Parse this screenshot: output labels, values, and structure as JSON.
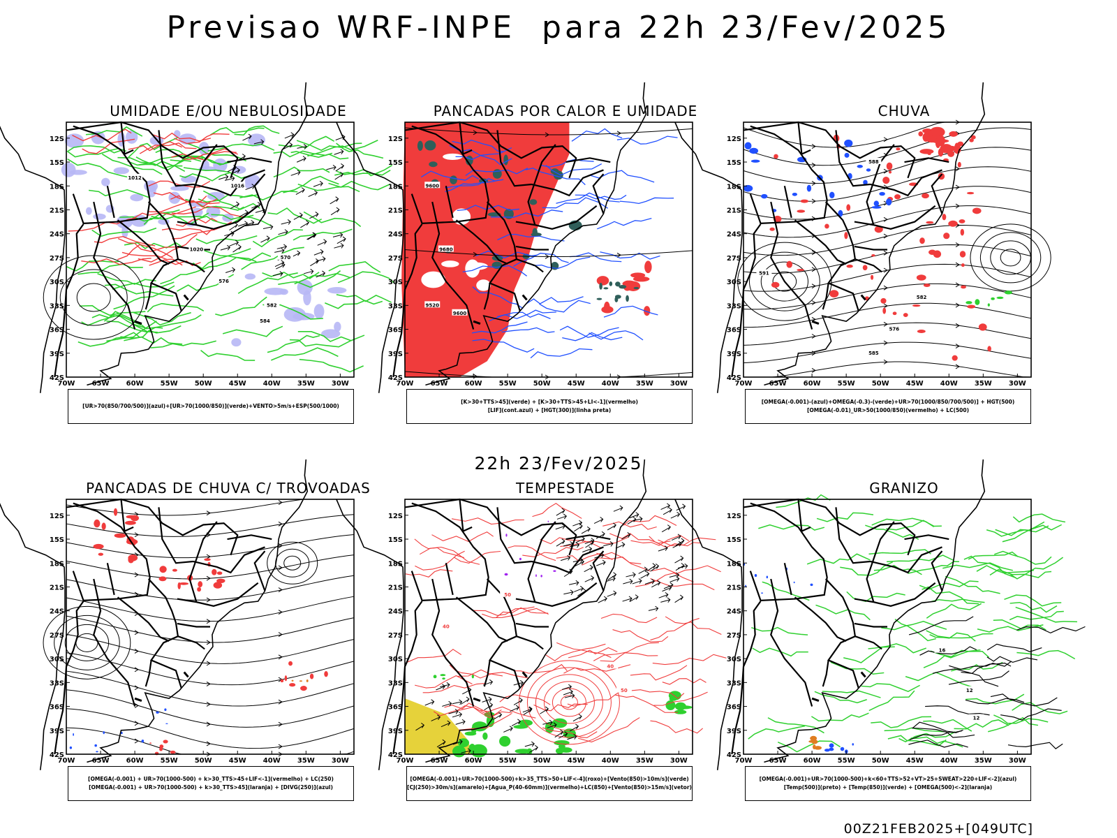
{
  "main_title": "Previsao WRF-INPE  para 22h 23/Fev/2025",
  "mid_date": "22h 23/Fev/2025",
  "footer_run": "00Z21FEB2025+[049UTC]",
  "axes": {
    "lat_labels": [
      "12S",
      "15S",
      "18S",
      "21S",
      "24S",
      "27S",
      "30S",
      "33S",
      "36S",
      "39S",
      "42S"
    ],
    "lon_labels": [
      "70W",
      "65W",
      "60W",
      "55W",
      "50W",
      "45W",
      "40W",
      "35W",
      "30W"
    ]
  },
  "colors": {
    "red": "#f03c3c",
    "green": "#2fd02f",
    "blue": "#2050ff",
    "lavender": "#b7b7f5",
    "darkteal": "#2f5f5a",
    "yellow": "#e6d23a",
    "orange": "#e07d20",
    "purple": "#a020f0"
  },
  "panels": [
    {
      "title": "UMIDADE E/OU NEBULOSIDADE",
      "legend": [
        "[UR>70(850/700/500)](azul)+[UR>70(1000/850)](verde)+VENTO>5m/s+ESP(500/1000)"
      ],
      "contour_labels": [
        "1012",
        "1016",
        "1020",
        "570",
        "576",
        "582",
        "584"
      ]
    },
    {
      "title": "PANCADAS POR CALOR E UMIDADE",
      "legend": [
        "[K>30+TTS>45](verde) + [K>30+TTS>45+LI<-1](vermelho)",
        "[LIF](cont.azul) + [HGT(300)](linha preta)"
      ],
      "contour_labels": [
        "9600",
        "9680",
        "9520",
        "9600"
      ]
    },
    {
      "title": "CHUVA",
      "legend": [
        "[OMEGA(-0.001)-(azul)+OMEGA(-0.3)-(verde)+UR>70(1000/850/700/500)] + HGT(500)",
        "[OMEGA(-0.01)_UR>50(1000/850)(vermelho) + LC(500)"
      ],
      "contour_labels": [
        "588",
        "591",
        "582",
        "576",
        "585"
      ]
    },
    {
      "title": "PANCADAS DE CHUVA C/ TROVOADAS",
      "legend": [
        "[OMEGA(-0.001) + UR>70(1000-500) + k>30_TTS>45+LIF<-1](vermelho) + LC(250)",
        "[OMEGA(-0.001) + UR>70(1000-500) + k>30_TTS>45](laranja) + [DIVG(250)](azul)"
      ],
      "contour_labels": []
    },
    {
      "title": "TEMPESTADE",
      "legend": [
        "[OMEGA(-0.001)+UR>70(1000-500)+k>35_TTS>50+LIF<-4](roxo)+[Vento(850)>10m/s](verde)",
        "[CJ(250)>30m/s](amarelo)+[Agua_P(40-60mm)](vermelho)+LC(850)+[Vento(850)>15m/s](vetor)"
      ],
      "contour_labels": [
        "40",
        "50",
        "40",
        "50"
      ]
    },
    {
      "title": "GRANIZO",
      "legend": [
        "[OMEGA(-0.001)+UR>70(1000-500)+k<60+TTS>52+VT>25+SWEAT>220+LIF<-2](azul)",
        "[Temp(500)](preto) + [Temp(850)](verde) + [OMEGA(500)<-2](laranja)"
      ],
      "contour_labels": [
        "12",
        "16",
        "12"
      ]
    }
  ]
}
